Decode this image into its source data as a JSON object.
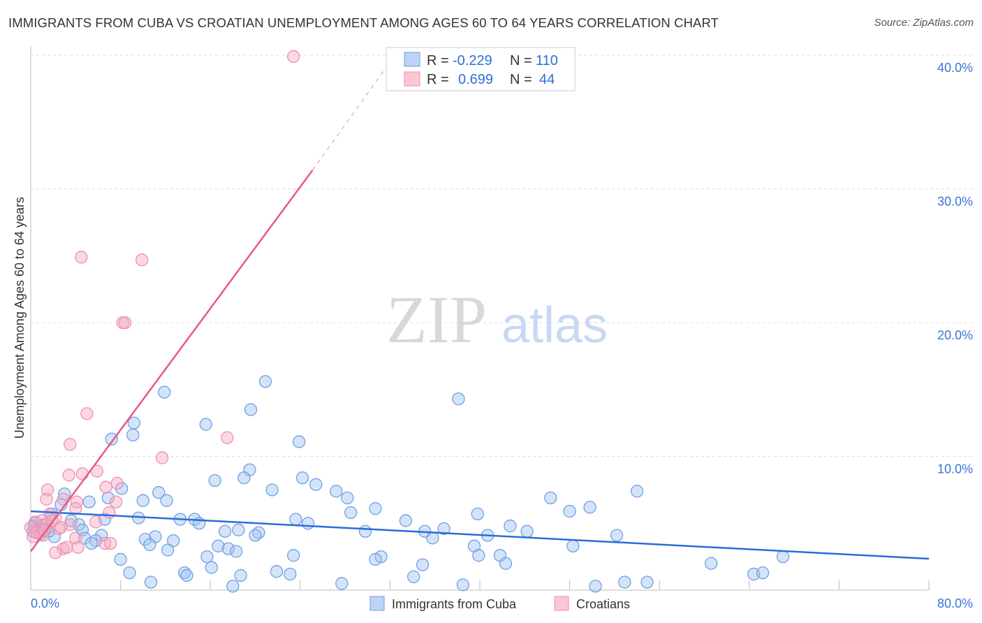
{
  "chart_data": {
    "type": "scatter",
    "title": "IMMIGRANTS FROM CUBA VS CROATIAN UNEMPLOYMENT AMONG AGES 60 TO 64 YEARS CORRELATION CHART",
    "source": "Source: ZipAtlas.com",
    "xlabel": "",
    "ylabel": "Unemployment Among Ages 60 to 64 years",
    "xlim": [
      0,
      80
    ],
    "ylim": [
      0,
      40
    ],
    "x_tick_labels": [
      "0.0%",
      "80.0%"
    ],
    "y_ticks": [
      10,
      20,
      30,
      40
    ],
    "y_tick_labels": [
      "10.0%",
      "20.0%",
      "30.0%",
      "40.0%"
    ],
    "grid": true,
    "legend_placement": "top-center",
    "watermark": "ZIPatlas",
    "series": [
      {
        "name": "Immigrants from Cuba",
        "color": "#6f9fe6",
        "line_color": "#2a6dd6",
        "R": "-0.229",
        "N": "110",
        "trend": [
          [
            0,
            5.9
          ],
          [
            80,
            2.35
          ]
        ],
        "points": [
          [
            20.9,
            15.6
          ],
          [
            38.1,
            14.3
          ],
          [
            11.9,
            14.8
          ],
          [
            19.6,
            13.5
          ],
          [
            9.2,
            12.5
          ],
          [
            15.6,
            12.4
          ],
          [
            7.2,
            11.3
          ],
          [
            9.1,
            11.6
          ],
          [
            23.9,
            11.1
          ],
          [
            19.5,
            9.0
          ],
          [
            16.4,
            8.2
          ],
          [
            19.0,
            8.4
          ],
          [
            24.2,
            8.4
          ],
          [
            25.4,
            7.9
          ],
          [
            21.5,
            7.5
          ],
          [
            27.2,
            7.4
          ],
          [
            28.2,
            6.9
          ],
          [
            54.0,
            7.4
          ],
          [
            46.3,
            6.9
          ],
          [
            8.1,
            7.6
          ],
          [
            11.4,
            7.3
          ],
          [
            10.0,
            6.7
          ],
          [
            12.1,
            6.7
          ],
          [
            6.9,
            6.9
          ],
          [
            5.2,
            6.6
          ],
          [
            3.0,
            7.2
          ],
          [
            2.7,
            6.4
          ],
          [
            30.7,
            6.1
          ],
          [
            28.5,
            5.8
          ],
          [
            49.8,
            6.2
          ],
          [
            48.0,
            5.9
          ],
          [
            39.8,
            5.7
          ],
          [
            9.6,
            5.4
          ],
          [
            13.3,
            5.3
          ],
          [
            14.6,
            5.3
          ],
          [
            6.6,
            5.3
          ],
          [
            23.6,
            5.3
          ],
          [
            24.7,
            5.0
          ],
          [
            15.0,
            5.0
          ],
          [
            33.4,
            5.2
          ],
          [
            36.8,
            4.6
          ],
          [
            42.7,
            4.8
          ],
          [
            44.2,
            4.4
          ],
          [
            35.1,
            4.4
          ],
          [
            29.8,
            4.4
          ],
          [
            18.5,
            4.5
          ],
          [
            17.3,
            4.4
          ],
          [
            20.3,
            4.3
          ],
          [
            20.0,
            4.1
          ],
          [
            3.6,
            5.2
          ],
          [
            1.9,
            5.7
          ],
          [
            4.3,
            4.9
          ],
          [
            4.6,
            4.5
          ],
          [
            40.7,
            4.1
          ],
          [
            52.2,
            4.1
          ],
          [
            35.8,
            3.9
          ],
          [
            6.3,
            4.1
          ],
          [
            4.8,
            3.9
          ],
          [
            2.1,
            4.0
          ],
          [
            5.8,
            3.7
          ],
          [
            11.1,
            4.0
          ],
          [
            12.7,
            3.7
          ],
          [
            10.2,
            3.8
          ],
          [
            5.4,
            3.5
          ],
          [
            16.7,
            3.3
          ],
          [
            17.6,
            3.1
          ],
          [
            10.6,
            3.4
          ],
          [
            39.5,
            3.3
          ],
          [
            48.3,
            3.3
          ],
          [
            12.2,
            3.0
          ],
          [
            18.3,
            2.9
          ],
          [
            39.9,
            2.6
          ],
          [
            41.8,
            2.6
          ],
          [
            23.4,
            2.6
          ],
          [
            15.7,
            2.5
          ],
          [
            67.0,
            2.5
          ],
          [
            31.2,
            2.5
          ],
          [
            30.7,
            2.3
          ],
          [
            8.0,
            2.3
          ],
          [
            34.9,
            1.9
          ],
          [
            42.3,
            2.0
          ],
          [
            60.6,
            2.0
          ],
          [
            16.1,
            1.7
          ],
          [
            21.9,
            1.4
          ],
          [
            8.8,
            1.3
          ],
          [
            13.7,
            1.3
          ],
          [
            13.9,
            1.1
          ],
          [
            23.1,
            1.2
          ],
          [
            18.7,
            1.1
          ],
          [
            64.4,
            1.2
          ],
          [
            65.2,
            1.3
          ],
          [
            34.1,
            1.0
          ],
          [
            10.7,
            0.6
          ],
          [
            27.7,
            0.5
          ],
          [
            38.5,
            0.4
          ],
          [
            52.9,
            0.6
          ],
          [
            54.9,
            0.6
          ],
          [
            50.3,
            0.3
          ],
          [
            18.0,
            0.3
          ],
          [
            0.4,
            5.0
          ],
          [
            0.7,
            4.7
          ],
          [
            1.0,
            4.4
          ],
          [
            1.4,
            4.6
          ],
          [
            0.2,
            4.4
          ],
          [
            1.6,
            4.4
          ],
          [
            0.3,
            4.8
          ],
          [
            1.2,
            4.9
          ],
          [
            0.9,
            4.2
          ]
        ]
      },
      {
        "name": "Croatians",
        "color": "#f08fac",
        "line_color": "#e8588a",
        "R": "0.699",
        "N": "44",
        "trend": [
          [
            0,
            2.9
          ],
          [
            25.1,
            31.4
          ]
        ],
        "trend_dashed": [
          [
            25.1,
            31.4
          ],
          [
            32.1,
            39.6
          ]
        ],
        "points": [
          [
            23.4,
            39.9
          ],
          [
            4.5,
            24.9
          ],
          [
            9.9,
            24.7
          ],
          [
            8.2,
            20.0
          ],
          [
            8.4,
            20.0
          ],
          [
            5.0,
            13.2
          ],
          [
            17.5,
            11.4
          ],
          [
            3.5,
            10.9
          ],
          [
            11.7,
            9.9
          ],
          [
            5.9,
            8.9
          ],
          [
            4.6,
            8.7
          ],
          [
            3.4,
            8.6
          ],
          [
            7.7,
            8.0
          ],
          [
            6.7,
            7.7
          ],
          [
            1.5,
            7.5
          ],
          [
            1.4,
            6.8
          ],
          [
            2.9,
            6.8
          ],
          [
            4.1,
            6.6
          ],
          [
            7.6,
            6.6
          ],
          [
            4.0,
            6.1
          ],
          [
            7.0,
            5.8
          ],
          [
            1.7,
            5.7
          ],
          [
            2.2,
            5.4
          ],
          [
            5.8,
            5.1
          ],
          [
            3.5,
            4.9
          ],
          [
            0.4,
            5.1
          ],
          [
            0.7,
            4.4
          ],
          [
            1.1,
            4.1
          ],
          [
            0.2,
            4.0
          ],
          [
            2.5,
            4.6
          ],
          [
            2.7,
            4.7
          ],
          [
            4.0,
            3.9
          ],
          [
            6.6,
            3.5
          ],
          [
            7.1,
            3.5
          ],
          [
            2.9,
            3.1
          ],
          [
            3.2,
            3.2
          ],
          [
            4.2,
            3.2
          ],
          [
            2.2,
            2.8
          ],
          [
            1.0,
            5.2
          ],
          [
            1.4,
            4.9
          ],
          [
            1.9,
            5.2
          ],
          [
            0.0,
            4.7
          ],
          [
            0.5,
            4.3
          ],
          [
            1.2,
            4.5
          ]
        ]
      }
    ]
  },
  "legend": {
    "r_label": "R =",
    "n_label": "N ="
  }
}
